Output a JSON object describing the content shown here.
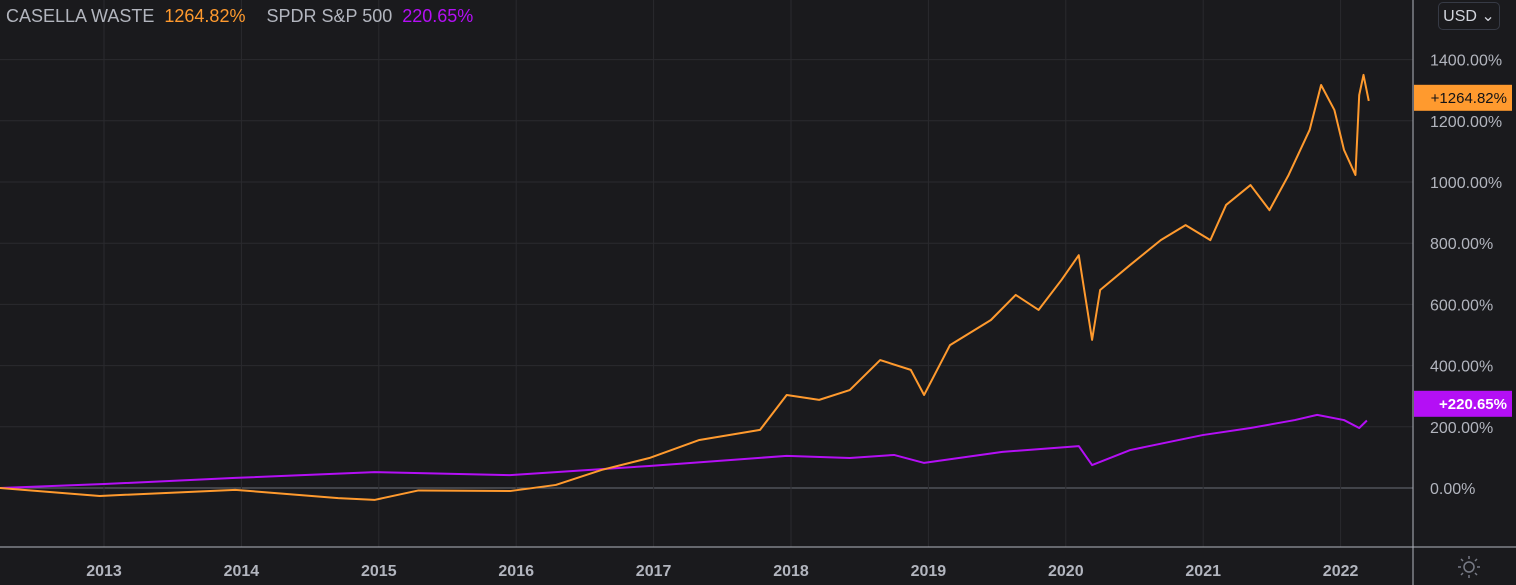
{
  "legend": {
    "series1_name": "CASELLA WASTE",
    "series1_value": "1264.82%",
    "series2_name": "SPDR S&P 500",
    "series2_value": "220.65%"
  },
  "currency_button": "USD ⌄",
  "settings_icon": "sun-icon",
  "colors": {
    "casella": "#ff9a2e",
    "spy": "#b40ff5",
    "background": "#1a1a1d",
    "grid": "#2a2a2e"
  },
  "chart_data": {
    "type": "line",
    "ylim": [
      -200,
      1500
    ],
    "yticks": [
      0,
      200,
      400,
      600,
      800,
      1000,
      1200,
      1400
    ],
    "ytick_labels": [
      "0.00%",
      "200.00%",
      "400.00%",
      "600.00%",
      "800.00%",
      "1000.00%",
      "1200.00%",
      "1400.00%"
    ],
    "xtick_labels": [
      "2013",
      "2014",
      "2015",
      "2016",
      "2017",
      "2018",
      "2019",
      "2020",
      "2021",
      "2022"
    ],
    "grid": true,
    "series": [
      {
        "name": "CASELLA WASTE",
        "last_label": "+1264.82%",
        "points": [
          [
            "2012-03-28",
            0
          ],
          [
            "2012-12-20",
            -26
          ],
          [
            "2013-12-15",
            -6
          ],
          [
            "2014-09-15",
            -33
          ],
          [
            "2014-12-20",
            -39
          ],
          [
            "2015-04-15",
            -8
          ],
          [
            "2015-12-15",
            -10
          ],
          [
            "2016-04-15",
            10
          ],
          [
            "2016-08-15",
            59
          ],
          [
            "2016-12-20",
            98
          ],
          [
            "2017-05-01",
            157
          ],
          [
            "2017-10-10",
            190
          ],
          [
            "2017-12-20",
            304
          ],
          [
            "2018-03-15",
            288
          ],
          [
            "2018-06-05",
            320
          ],
          [
            "2018-08-25",
            418
          ],
          [
            "2018-11-15",
            386
          ],
          [
            "2018-12-20",
            304
          ],
          [
            "2019-02-28",
            467
          ],
          [
            "2019-06-15",
            549
          ],
          [
            "2019-08-20",
            631
          ],
          [
            "2019-10-20",
            582
          ],
          [
            "2019-12-20",
            680
          ],
          [
            "2020-02-05",
            761
          ],
          [
            "2020-03-10",
            484
          ],
          [
            "2020-04-01",
            647
          ],
          [
            "2020-06-20",
            729
          ],
          [
            "2020-09-10",
            810
          ],
          [
            "2020-11-15",
            859
          ],
          [
            "2021-01-20",
            810
          ],
          [
            "2021-03-01",
            925
          ],
          [
            "2021-05-05",
            990
          ],
          [
            "2021-06-25",
            908
          ],
          [
            "2021-08-15",
            1023
          ],
          [
            "2021-10-10",
            1170
          ],
          [
            "2021-11-10",
            1317
          ],
          [
            "2021-12-15",
            1235
          ],
          [
            "2022-01-10",
            1105
          ],
          [
            "2022-02-10",
            1023
          ],
          [
            "2022-02-20",
            1284
          ],
          [
            "2022-03-01",
            1350
          ],
          [
            "2022-03-15",
            1264.82
          ]
        ]
      },
      {
        "name": "SPDR S&P 500",
        "last_label": "+220.65%",
        "points": [
          [
            "2012-03-28",
            0
          ],
          [
            "2013-01-01",
            13
          ],
          [
            "2013-12-15",
            33
          ],
          [
            "2014-12-20",
            52
          ],
          [
            "2015-12-15",
            42
          ],
          [
            "2016-04-15",
            52
          ],
          [
            "2016-12-20",
            72
          ],
          [
            "2017-12-20",
            105
          ],
          [
            "2018-06-05",
            98
          ],
          [
            "2018-10-01",
            108
          ],
          [
            "2018-12-20",
            82
          ],
          [
            "2019-07-15",
            118
          ],
          [
            "2020-02-05",
            137
          ],
          [
            "2020-03-10",
            75
          ],
          [
            "2020-06-20",
            124
          ],
          [
            "2020-12-30",
            173
          ],
          [
            "2021-05-05",
            196
          ],
          [
            "2021-09-01",
            222
          ],
          [
            "2021-10-30",
            239
          ],
          [
            "2022-01-10",
            222
          ],
          [
            "2022-02-20",
            196
          ],
          [
            "2022-03-10",
            220.65
          ]
        ]
      }
    ]
  }
}
